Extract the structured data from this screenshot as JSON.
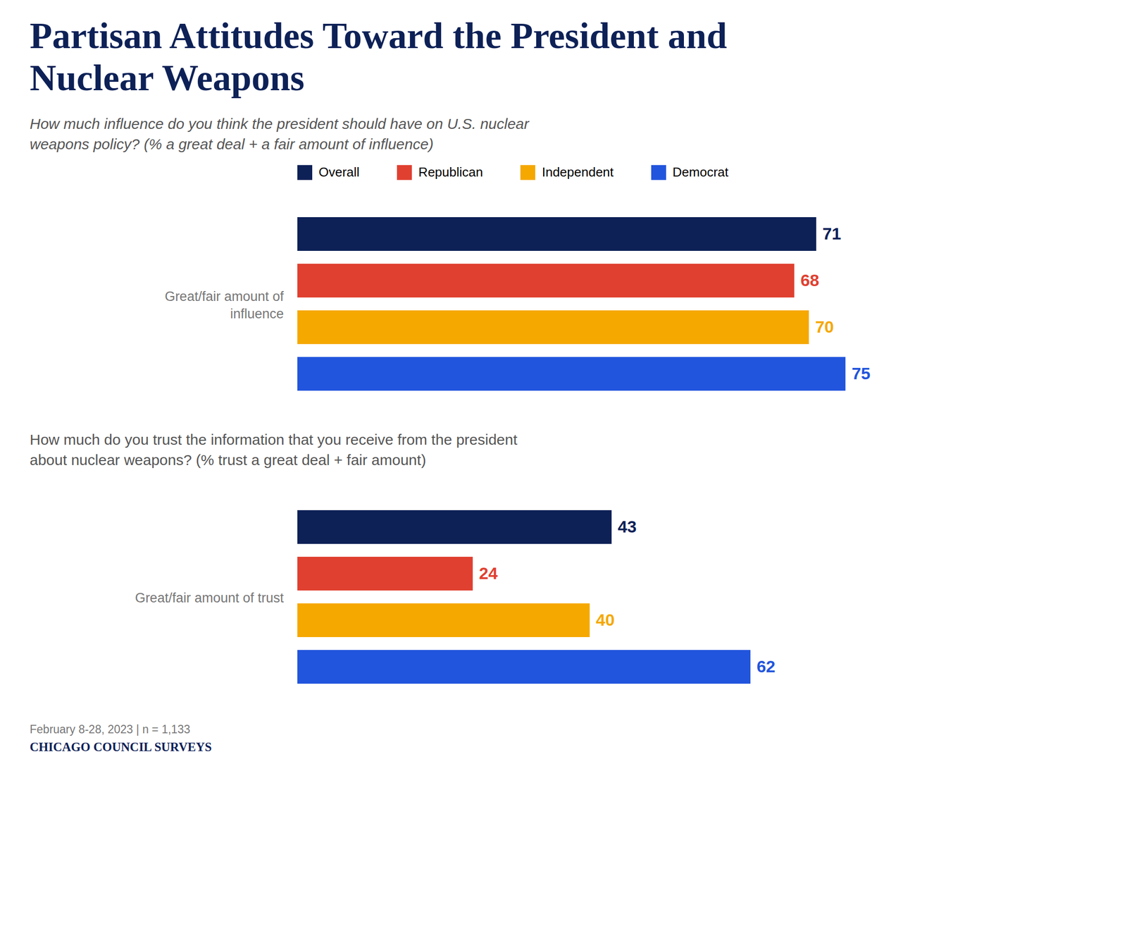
{
  "chart_data": [
    {
      "type": "bar",
      "orientation": "horizontal",
      "title": "Partisan Attitudes Toward the President and\nNuclear Weapons",
      "subtitle": "How much influence do you think the president should have on U.S. nuclear\nweapons policy? (% a great deal + a fair amount of influence)",
      "categories": [
        "Great/fair amount of\ninfluence"
      ],
      "series": [
        {
          "name": "Overall",
          "color": "#0d2157",
          "values": [
            71
          ]
        },
        {
          "name": "Republican",
          "color": "#e04030",
          "values": [
            68
          ]
        },
        {
          "name": "Independent",
          "color": "#f5a800",
          "values": [
            70
          ]
        },
        {
          "name": "Democrat",
          "color": "#2255dd",
          "values": [
            75
          ]
        }
      ],
      "xlim": [
        0,
        102
      ],
      "tick_labels": false,
      "data_labels": true,
      "grid": false,
      "legend": "top"
    },
    {
      "type": "bar",
      "orientation": "horizontal",
      "subtitle": "How much do you trust the information that you receive from the president\nabout nuclear weapons? (% trust a great deal + fair amount)",
      "categories": [
        "Great/fair amount of trust"
      ],
      "series": [
        {
          "name": "Overall",
          "color": "#0d2157",
          "values": [
            43
          ]
        },
        {
          "name": "Republican",
          "color": "#e04030",
          "values": [
            24
          ]
        },
        {
          "name": "Independent",
          "color": "#f5a800",
          "values": [
            40
          ]
        },
        {
          "name": "Democrat",
          "color": "#2255dd",
          "values": [
            62
          ]
        }
      ],
      "xlim": [
        0,
        102
      ],
      "tick_labels": false,
      "data_labels": true,
      "grid": false,
      "footnote": "February 8-28, 2023 | n = 1,133",
      "source": "CHICAGO COUNCIL SURVEYS"
    }
  ]
}
